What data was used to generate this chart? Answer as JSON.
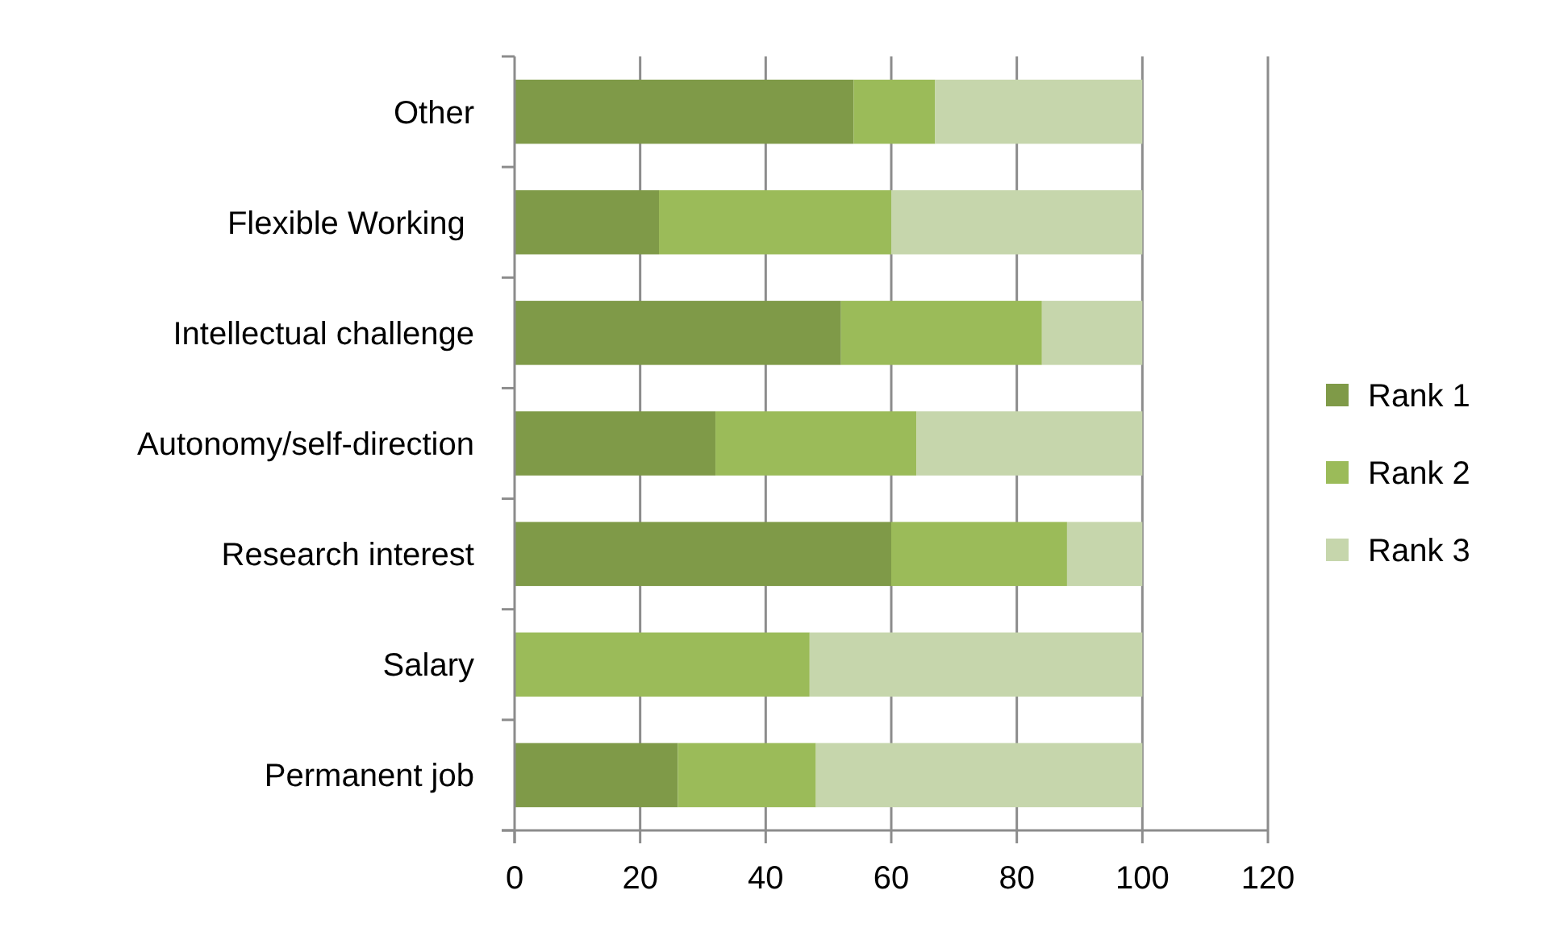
{
  "chart_data": {
    "type": "bar",
    "orientation": "horizontal",
    "stacked": true,
    "categories": [
      "Other",
      "Flexible Working ",
      "Intellectual challenge",
      "Autonomy/self-direction",
      "Research interest",
      "Salary",
      "Permanent job"
    ],
    "series": [
      {
        "name": "Rank 1",
        "color": "#7f9a48",
        "values": [
          54,
          23,
          52,
          32,
          60,
          0,
          26
        ]
      },
      {
        "name": "Rank 2",
        "color": "#9bbb59",
        "values": [
          13,
          37,
          32,
          32,
          28,
          47,
          22
        ]
      },
      {
        "name": "Rank 3",
        "color": "#c6d6ac",
        "values": [
          33,
          40,
          16,
          36,
          12,
          53,
          52
        ]
      }
    ],
    "xlim": [
      0,
      120
    ],
    "xticks": [
      0,
      20,
      40,
      60,
      80,
      100,
      120
    ],
    "grid": "x",
    "legend": "right"
  }
}
